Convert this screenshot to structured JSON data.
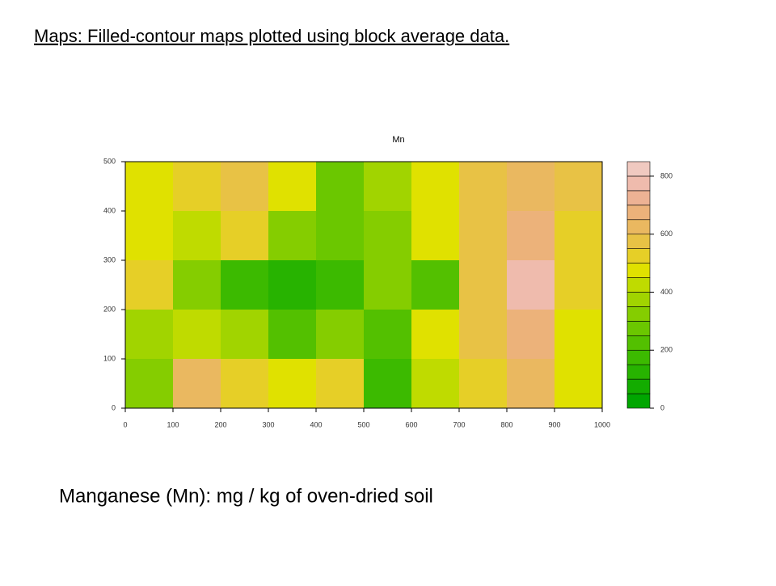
{
  "heading": "Maps: Filled-contour maps plotted using block average data.",
  "caption": "Manganese (Mn): mg / kg of oven-dried soil",
  "chart_data": {
    "type": "filled-contour",
    "title": "Mn",
    "x": [
      50,
      150,
      250,
      350,
      450,
      550,
      650,
      750,
      850,
      950
    ],
    "y": [
      450,
      350,
      250,
      150,
      50
    ],
    "values": [
      [
        450,
        500,
        550,
        450,
        250,
        350,
        450,
        550,
        600,
        550
      ],
      [
        450,
        400,
        500,
        300,
        250,
        300,
        450,
        550,
        650,
        500
      ],
      [
        500,
        300,
        150,
        100,
        150,
        300,
        200,
        550,
        750,
        500
      ],
      [
        350,
        400,
        350,
        200,
        300,
        200,
        450,
        550,
        650,
        450
      ],
      [
        300,
        600,
        500,
        450,
        500,
        150,
        400,
        500,
        600,
        450
      ]
    ],
    "xlim": [
      0,
      1000
    ],
    "xticks": [
      0,
      100,
      200,
      300,
      400,
      500,
      600,
      700,
      800,
      900,
      1000
    ],
    "ylim": [
      0,
      500
    ],
    "yticks": [
      0,
      100,
      200,
      300,
      400,
      500
    ],
    "levels": [
      0,
      50,
      100,
      150,
      200,
      250,
      300,
      350,
      400,
      450,
      500,
      550,
      600,
      650,
      700,
      750,
      800,
      850
    ],
    "colors": [
      "#00a600",
      "#13ac00",
      "#27b300",
      "#3cba00",
      "#53c000",
      "#6bc700",
      "#85cd00",
      "#a1d400",
      "#bfdb00",
      "#e0e100",
      "#e6cf27",
      "#e8c245",
      "#eab860",
      "#ecb27a",
      "#edb294",
      "#efbbad",
      "#f0c9c0",
      "#f2f2f2"
    ],
    "colorbar_ticks": [
      0,
      200,
      400,
      600,
      800
    ]
  }
}
